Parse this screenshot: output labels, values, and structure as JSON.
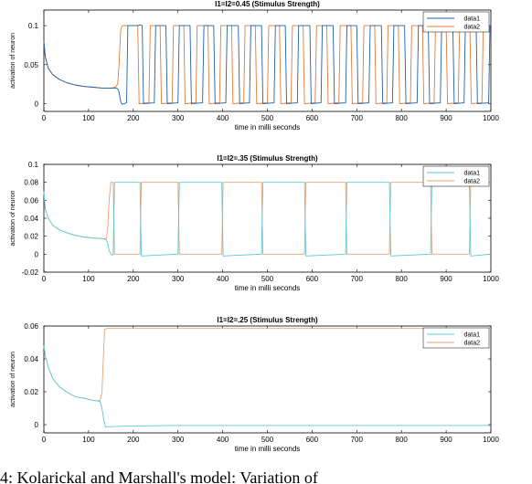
{
  "chart_data": [
    {
      "type": "line",
      "title": "I1=I2=0.45 (Stimulus Strength)",
      "xlabel": "time in milli seconds",
      "ylabel": "activation of neuron",
      "xlim": [
        0,
        1000
      ],
      "ylim": [
        -0.01,
        0.12
      ],
      "xticks": [
        "0",
        "100",
        "200",
        "300",
        "400",
        "500",
        "600",
        "700",
        "800",
        "900",
        "1000"
      ],
      "yticks": [
        "0",
        "0.05",
        "0.1"
      ],
      "ytick_values": [
        0,
        0.05,
        0.1
      ],
      "grid": false,
      "legend_position": "top-right",
      "colors": {
        "data1": "#1f5fa8",
        "data2": "#e07a3a"
      },
      "series": [
        {
          "name": "data1",
          "x": [
            0,
            3,
            10,
            20,
            35,
            50,
            70,
            90,
            110,
            130,
            150,
            160,
            165,
            168,
            172,
            175,
            185,
            188,
            210,
            215,
            220,
            223,
            247,
            250,
            273,
            276,
            300,
            303,
            327,
            330,
            355,
            358,
            380,
            383,
            407,
            410,
            435,
            438,
            460,
            463,
            487,
            490,
            515,
            518,
            540,
            543,
            567,
            570,
            595,
            598,
            620,
            623,
            647,
            650,
            675,
            678,
            700,
            703,
            727,
            730,
            755,
            758,
            780,
            783,
            807,
            810,
            835,
            838,
            860,
            863,
            887,
            890,
            915,
            918,
            940,
            943,
            967,
            970,
            995,
            998,
            1000
          ],
          "y": [
            0.08,
            0.06,
            0.045,
            0.037,
            0.031,
            0.027,
            0.024,
            0.022,
            0.021,
            0.02,
            0.02,
            0.02,
            0.019,
            0.015,
            0.002,
            -0.001,
            0.001,
            0.1,
            0.1,
            0.101,
            0.1,
            0.0,
            0.001,
            0.1,
            0.1,
            0.0,
            0.001,
            0.1,
            0.1,
            0.0,
            0.001,
            0.1,
            0.1,
            0.0,
            0.001,
            0.1,
            0.1,
            0.0,
            0.001,
            0.1,
            0.1,
            0.0,
            0.001,
            0.1,
            0.1,
            0.0,
            0.001,
            0.1,
            0.1,
            0.0,
            0.001,
            0.1,
            0.1,
            0.0,
            0.001,
            0.1,
            0.1,
            0.0,
            0.001,
            0.1,
            0.1,
            0.0,
            0.001,
            0.1,
            0.1,
            0.0,
            0.001,
            0.1,
            0.1,
            0.0,
            0.001,
            0.1,
            0.1,
            0.0,
            0.001,
            0.1,
            0.1,
            0.0,
            0.001,
            0.1,
            0.1
          ]
        },
        {
          "name": "data2",
          "x": [
            0,
            3,
            10,
            20,
            35,
            50,
            70,
            90,
            110,
            130,
            150,
            160,
            165,
            168,
            172,
            175,
            185,
            188,
            210,
            213,
            235,
            238,
            260,
            263,
            287,
            290,
            313,
            316,
            340,
            343,
            367,
            370,
            393,
            396,
            420,
            423,
            447,
            450,
            473,
            476,
            500,
            503,
            527,
            530,
            553,
            556,
            580,
            583,
            607,
            610,
            633,
            636,
            660,
            663,
            687,
            690,
            713,
            716,
            740,
            743,
            767,
            770,
            793,
            796,
            820,
            823,
            847,
            850,
            873,
            876,
            900,
            903,
            927,
            930,
            953,
            956,
            980,
            983,
            1000
          ],
          "y": [
            0.08,
            0.06,
            0.045,
            0.037,
            0.031,
            0.027,
            0.024,
            0.022,
            0.021,
            0.02,
            0.02,
            0.021,
            0.025,
            0.05,
            0.095,
            0.1,
            0.1,
            0.1,
            0.1,
            0.0,
            0.001,
            0.1,
            0.1,
            0.0,
            0.001,
            0.1,
            0.1,
            0.0,
            0.001,
            0.1,
            0.1,
            0.0,
            0.001,
            0.1,
            0.1,
            0.0,
            0.001,
            0.1,
            0.1,
            0.0,
            0.001,
            0.1,
            0.1,
            0.0,
            0.001,
            0.1,
            0.1,
            0.0,
            0.001,
            0.1,
            0.1,
            0.0,
            0.001,
            0.1,
            0.1,
            0.0,
            0.001,
            0.1,
            0.1,
            0.0,
            0.001,
            0.1,
            0.1,
            0.0,
            0.001,
            0.1,
            0.1,
            0.0,
            0.001,
            0.1,
            0.1,
            0.0,
            0.001,
            0.1,
            0.1,
            0.0,
            0.001,
            0.1,
            0.1
          ]
        }
      ]
    },
    {
      "type": "line",
      "title": "I1=I2=.35 (Stimulus Strength)",
      "xlabel": "time in milli seconds",
      "ylabel": "activation of neuron",
      "xlim": [
        0,
        1000
      ],
      "ylim": [
        -0.02,
        0.1
      ],
      "xticks": [
        "0",
        "100",
        "200",
        "300",
        "400",
        "500",
        "600",
        "700",
        "800",
        "900",
        "1000"
      ],
      "yticks": [
        "-0.02",
        "0",
        "0.02",
        "0.04",
        "0.06",
        "0.08",
        "0.1"
      ],
      "ytick_values": [
        -0.02,
        0,
        0.02,
        0.04,
        0.06,
        0.08,
        0.1
      ],
      "grid": false,
      "legend_position": "top-right",
      "colors": {
        "data1": "#5bc8d8",
        "data2": "#e8a070"
      },
      "series": [
        {
          "name": "data1",
          "x": [
            0,
            3,
            10,
            20,
            35,
            50,
            70,
            90,
            110,
            125,
            135,
            140,
            143,
            146,
            150,
            155,
            158,
            215,
            218,
            300,
            303,
            398,
            401,
            487,
            490,
            583,
            586,
            675,
            678,
            773,
            776,
            865,
            868,
            952,
            955,
            1000
          ],
          "y": [
            0.07,
            0.05,
            0.04,
            0.032,
            0.027,
            0.024,
            0.021,
            0.019,
            0.018,
            0.0175,
            0.017,
            0.016,
            0.012,
            0.004,
            0.0,
            -0.001,
            0.08,
            0.08,
            -0.002,
            0.0,
            0.08,
            0.08,
            -0.002,
            0.0,
            0.08,
            0.08,
            -0.002,
            0.0,
            0.08,
            0.08,
            -0.002,
            0.0,
            0.08,
            0.08,
            -0.002,
            0.0
          ]
        },
        {
          "name": "data2",
          "x": [
            0,
            3,
            10,
            20,
            35,
            50,
            70,
            90,
            110,
            125,
            135,
            140,
            143,
            146,
            150,
            155,
            158,
            215,
            218,
            300,
            303,
            398,
            401,
            487,
            490,
            583,
            586,
            675,
            678,
            773,
            776,
            865,
            868,
            952,
            955,
            1000
          ],
          "y": [
            0.07,
            0.05,
            0.04,
            0.032,
            0.027,
            0.024,
            0.021,
            0.019,
            0.018,
            0.0175,
            0.017,
            0.018,
            0.03,
            0.06,
            0.08,
            0.08,
            0.0,
            0.0,
            0.08,
            0.08,
            0.0,
            0.0,
            0.08,
            0.08,
            0.0,
            0.0,
            0.08,
            0.08,
            0.0,
            0.0,
            0.08,
            0.08,
            0.0,
            0.0,
            0.08,
            0.08
          ]
        }
      ]
    },
    {
      "type": "line",
      "title": "I1=I2=.25 (Stimulus Strength)",
      "xlabel": "time in milli seconds",
      "ylabel": "activation of neuron",
      "xlim": [
        0,
        1000
      ],
      "ylim": [
        -0.005,
        0.06
      ],
      "xticks": [
        "0",
        "100",
        "200",
        "300",
        "400",
        "500",
        "600",
        "700",
        "800",
        "900",
        "1000"
      ],
      "yticks": [
        "0",
        "0.02",
        "0.04",
        "0.06"
      ],
      "ytick_values": [
        0,
        0.02,
        0.04,
        0.06
      ],
      "grid": false,
      "legend_position": "top-right",
      "colors": {
        "data1": "#5bc8d8",
        "data2": "#e8a070"
      },
      "series": [
        {
          "name": "data1",
          "x": [
            0,
            3,
            10,
            20,
            35,
            50,
            70,
            90,
            110,
            120,
            126,
            130,
            134,
            138,
            145,
            170,
            200,
            300,
            1000
          ],
          "y": [
            0.048,
            0.042,
            0.035,
            0.028,
            0.023,
            0.02,
            0.017,
            0.016,
            0.0148,
            0.0145,
            0.014,
            0.01,
            0.003,
            -0.0015,
            -0.0013,
            -0.001,
            -0.0008,
            -0.0005,
            -0.0005
          ]
        },
        {
          "name": "data2",
          "x": [
            0,
            3,
            10,
            20,
            35,
            50,
            70,
            90,
            110,
            120,
            126,
            130,
            133,
            136,
            140,
            1000
          ],
          "y": [
            0.048,
            0.042,
            0.035,
            0.028,
            0.023,
            0.02,
            0.017,
            0.016,
            0.0148,
            0.0145,
            0.0148,
            0.02,
            0.04,
            0.058,
            0.0585,
            0.0585
          ]
        }
      ]
    }
  ],
  "caption": "4: Kolarickal and Marshall's model: Variation of"
}
